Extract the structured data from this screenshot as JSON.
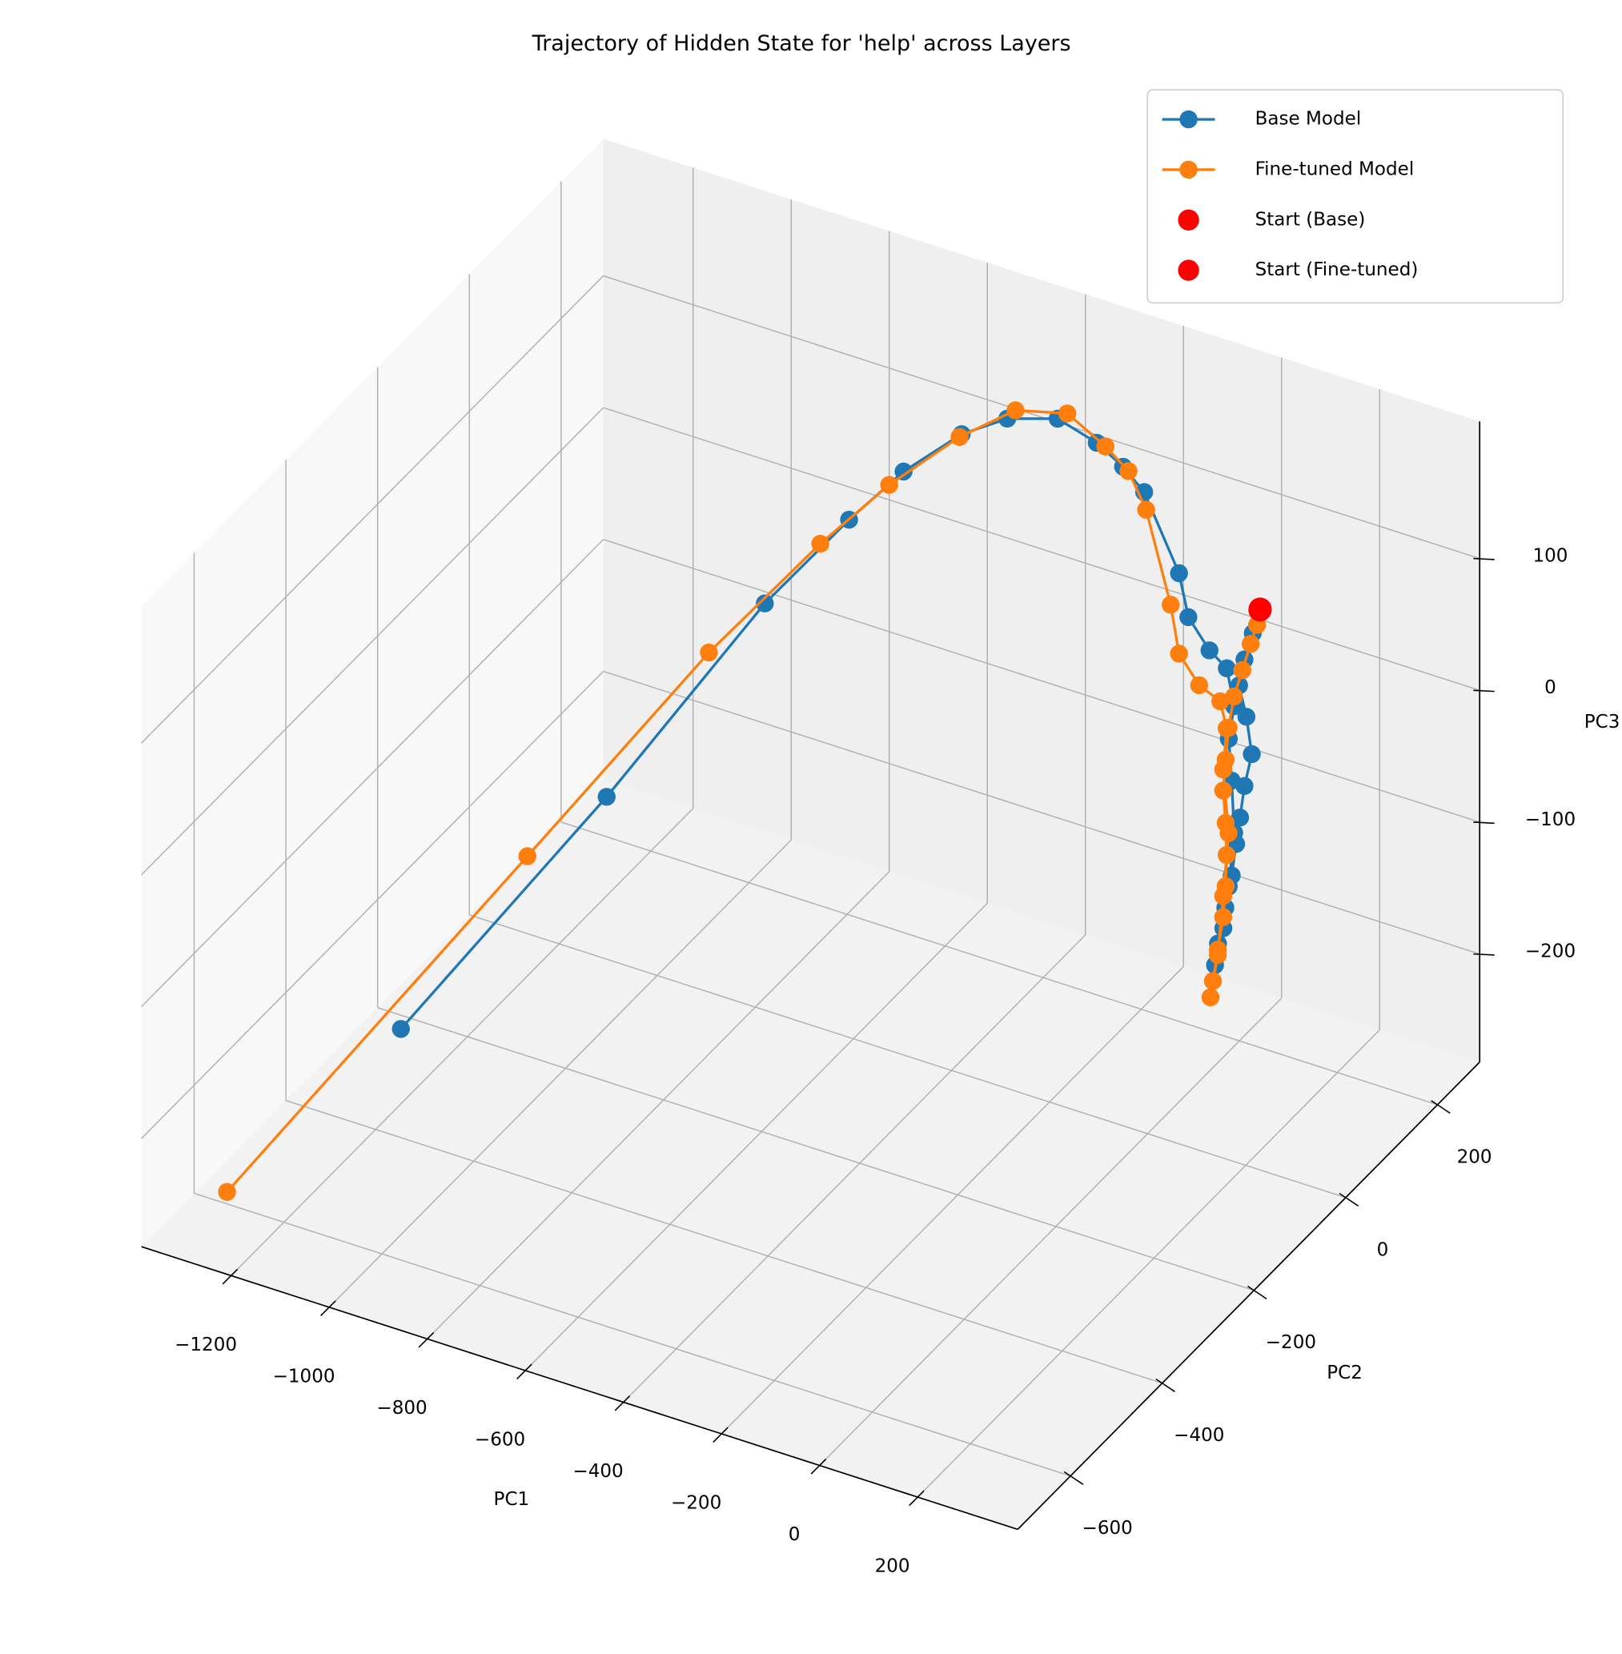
{
  "chart_data": {
    "type": "line3d",
    "title": "Trajectory of Hidden State for 'help' across Layers",
    "xlabel": "PC1",
    "ylabel": "PC2",
    "zlabel": "PC3",
    "xlim": [
      -1383,
      404
    ],
    "ylim": [
      -715,
      292
    ],
    "zlim": [
      -282,
      204
    ],
    "xticks": [
      {
        "value": -1200,
        "label": "−1200"
      },
      {
        "value": -1000,
        "label": "−1000"
      },
      {
        "value": -800,
        "label": "−800"
      },
      {
        "value": -600,
        "label": "−600"
      },
      {
        "value": -400,
        "label": "−400"
      },
      {
        "value": -200,
        "label": "−200"
      },
      0,
      200
    ],
    "yticks": [
      {
        "value": -600,
        "label": "−600"
      },
      {
        "value": -400,
        "label": "−400"
      },
      {
        "value": -200,
        "label": "−200"
      },
      0,
      200
    ],
    "zticks": [
      {
        "value": -200,
        "label": "−200"
      },
      {
        "value": -100,
        "label": "−100"
      },
      0,
      100
    ],
    "grid": true,
    "legend": "upper right",
    "series": [
      {
        "name": "Base Model",
        "color": "#1f77b4",
        "x": [
          5,
          -10,
          -27,
          -38,
          -23,
          -12,
          -27,
          -36,
          -44,
          -53,
          -66,
          -81,
          -87,
          -70,
          -59,
          -48,
          -53,
          -59,
          -48,
          -63,
          -89,
          -118,
          -123,
          -180,
          -209,
          -244,
          -305,
          -389,
          -454,
          -535,
          -590,
          -687,
          -916,
          -1242
        ],
        "y": [
          240,
          240,
          240,
          240,
          240,
          240,
          240,
          240,
          240,
          240,
          240,
          240,
          240,
          240,
          240,
          240,
          240,
          240,
          240,
          240,
          230,
          215,
          200,
          185,
          170,
          150,
          130,
          110,
          80,
          40,
          -20,
          -100,
          -200,
          -300
        ],
        "z": [
          32,
          12,
          -10,
          -31,
          -53,
          -80,
          -106,
          -131,
          -152,
          -177,
          -203,
          -232,
          -249,
          -219,
          -186,
          -144,
          -105,
          -74,
          -48,
          -21,
          -7,
          20,
          58,
          118,
          139,
          160,
          178,
          175,
          166,
          142,
          120,
          73,
          -66,
          -246
        ]
      },
      {
        "name": "Fine-tuned Model",
        "color": "#ff7f0e",
        "x": [
          14,
          8,
          -5,
          -22,
          -39,
          -50,
          -56,
          -61,
          -56,
          -54,
          -56,
          -61,
          -72,
          -82,
          -87,
          -72,
          -61,
          -50,
          -61,
          -54,
          -67,
          -96,
          -123,
          -126,
          -162,
          -184,
          -217,
          -276,
          -363,
          -449,
          -555,
          -630,
          -773,
          -984,
          -1300
        ],
        "y": [
          230,
          230,
          230,
          230,
          230,
          230,
          230,
          230,
          230,
          230,
          230,
          230,
          230,
          230,
          230,
          230,
          230,
          230,
          230,
          230,
          230,
          215,
          200,
          185,
          170,
          155,
          140,
          120,
          100,
          70,
          30,
          -40,
          -130,
          -300,
          -617
        ],
        "z": [
          36,
          24,
          8,
          -14,
          -36,
          -61,
          -86,
          -110,
          -134,
          -158,
          -182,
          -206,
          -232,
          -257,
          -270,
          -236,
          -190,
          -141,
          -94,
          -62,
          -43,
          -29,
          -3,
          39,
          112,
          144,
          164,
          189,
          188,
          168,
          133,
          104,
          36,
          -84,
          -265
        ]
      }
    ],
    "starts": [
      {
        "name": "Start (Base)",
        "color": "#ff0000",
        "x": 5,
        "y": 240,
        "z": 32
      },
      {
        "name": "Start (Fine-tuned)",
        "color": "#ff0000",
        "x": 14,
        "y": 230,
        "z": 36
      }
    ]
  }
}
